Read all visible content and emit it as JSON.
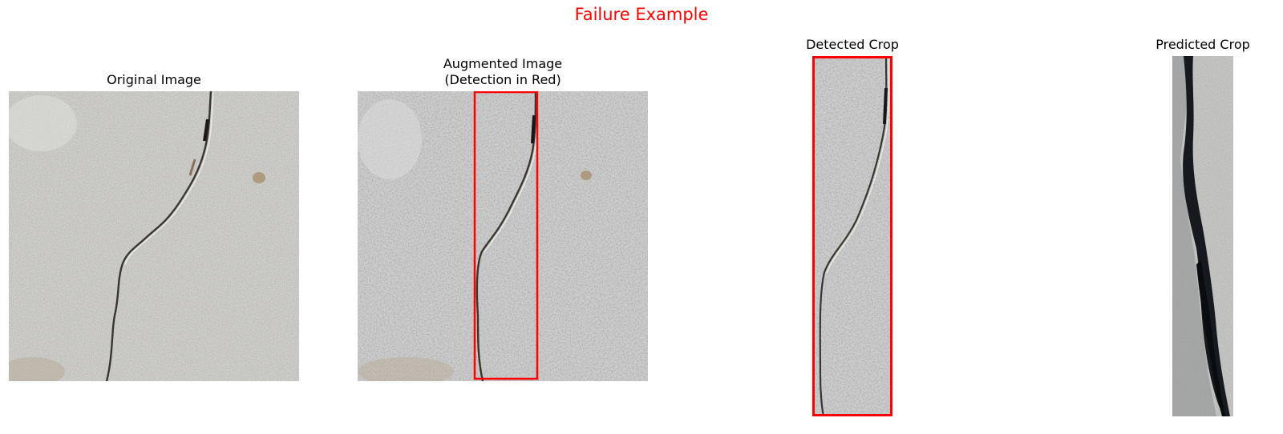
{
  "figure": {
    "title": "Failure Example",
    "title_color": "#ff0000",
    "detection_box_color": "#ff0000"
  },
  "panels": [
    {
      "title": "Original Image",
      "content": "concrete surface with diagonal crack"
    },
    {
      "title": "Augmented Image\n(Detection in Red)",
      "content": "augmented concrete surface with red detection box"
    },
    {
      "title": "Detected Crop",
      "content": "narrow vertical crop of crack with red border"
    },
    {
      "title": "Predicted Crop",
      "content": "narrow vertical crop of wide dark crack"
    }
  ]
}
